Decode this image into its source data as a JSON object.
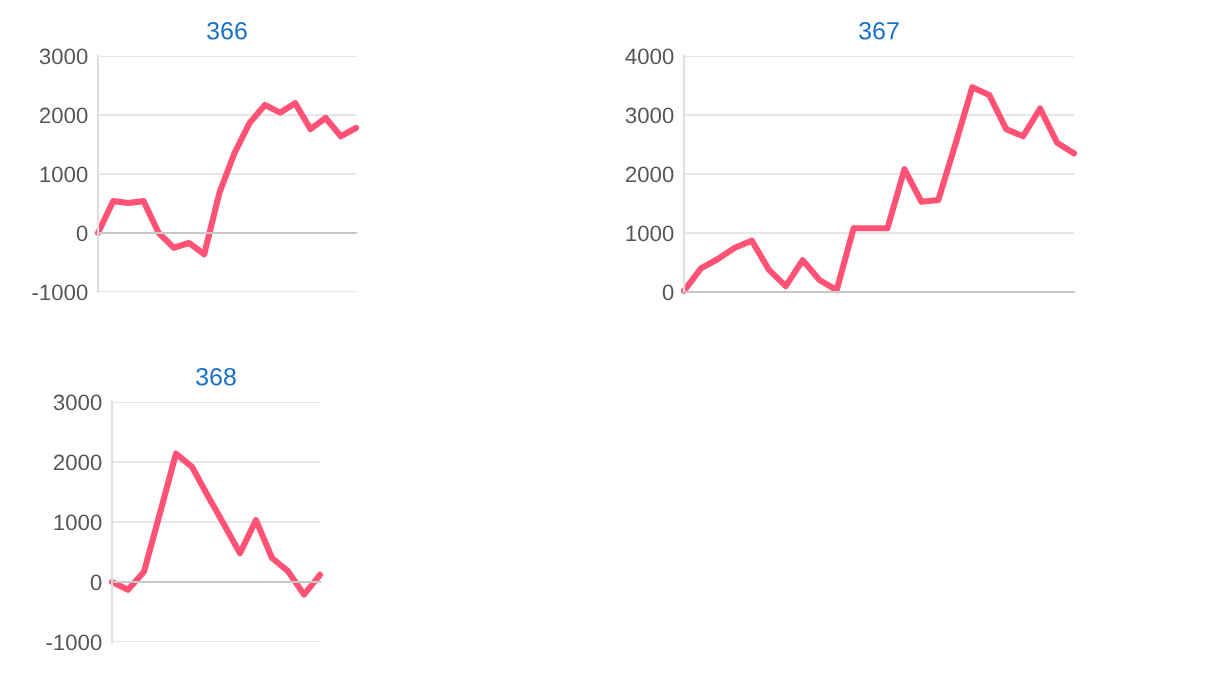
{
  "chart_data": [
    {
      "type": "line",
      "title": "366",
      "categories": [
        null,
        null,
        null,
        null,
        null,
        null,
        null,
        null,
        null,
        null,
        null,
        null,
        null,
        null,
        null,
        null,
        null,
        null
      ],
      "series": [
        {
          "color": "#ff5274",
          "values": [
            0,
            540,
            510,
            540,
            0,
            -250,
            -170,
            -360,
            680,
            1360,
            1870,
            2170,
            2040,
            2200,
            1760,
            1950,
            1640,
            1780
          ]
        }
      ],
      "ylim": [
        -1000,
        3000
      ],
      "yticks": [
        -1000,
        0,
        1000,
        2000,
        3000
      ],
      "grid": "y",
      "marker": "none",
      "line_style": "solid"
    },
    {
      "type": "line",
      "title": "367",
      "categories": [
        null,
        null,
        null,
        null,
        null,
        null,
        null,
        null,
        null,
        null,
        null,
        null,
        null,
        null,
        null,
        null,
        null,
        null,
        null,
        null,
        null,
        null,
        null,
        null
      ],
      "series": [
        {
          "color": "#ff5274",
          "values": [
            20,
            400,
            560,
            750,
            870,
            380,
            100,
            540,
            200,
            30,
            1080,
            1080,
            1080,
            2080,
            1530,
            1560,
            2500,
            3470,
            3340,
            2760,
            2640,
            3110,
            2530,
            2350
          ]
        }
      ],
      "ylim": [
        0,
        4000
      ],
      "yticks": [
        0,
        1000,
        2000,
        3000,
        4000
      ],
      "grid": "y",
      "marker": "none",
      "line_style": "solid"
    },
    {
      "type": "line",
      "title": "368",
      "categories": [
        null,
        null,
        null,
        null,
        null,
        null,
        null,
        null,
        null,
        null,
        null,
        null,
        null,
        null
      ],
      "series": [
        {
          "color": "#ff5274",
          "values": [
            0,
            -130,
            170,
            1150,
            2140,
            1920,
            1430,
            960,
            480,
            1030,
            400,
            180,
            -210,
            120
          ]
        }
      ],
      "ylim": [
        -1000,
        3000
      ],
      "yticks": [
        -1000,
        0,
        1000,
        2000,
        3000
      ],
      "grid": "y",
      "marker": "none",
      "line_style": "solid"
    }
  ]
}
